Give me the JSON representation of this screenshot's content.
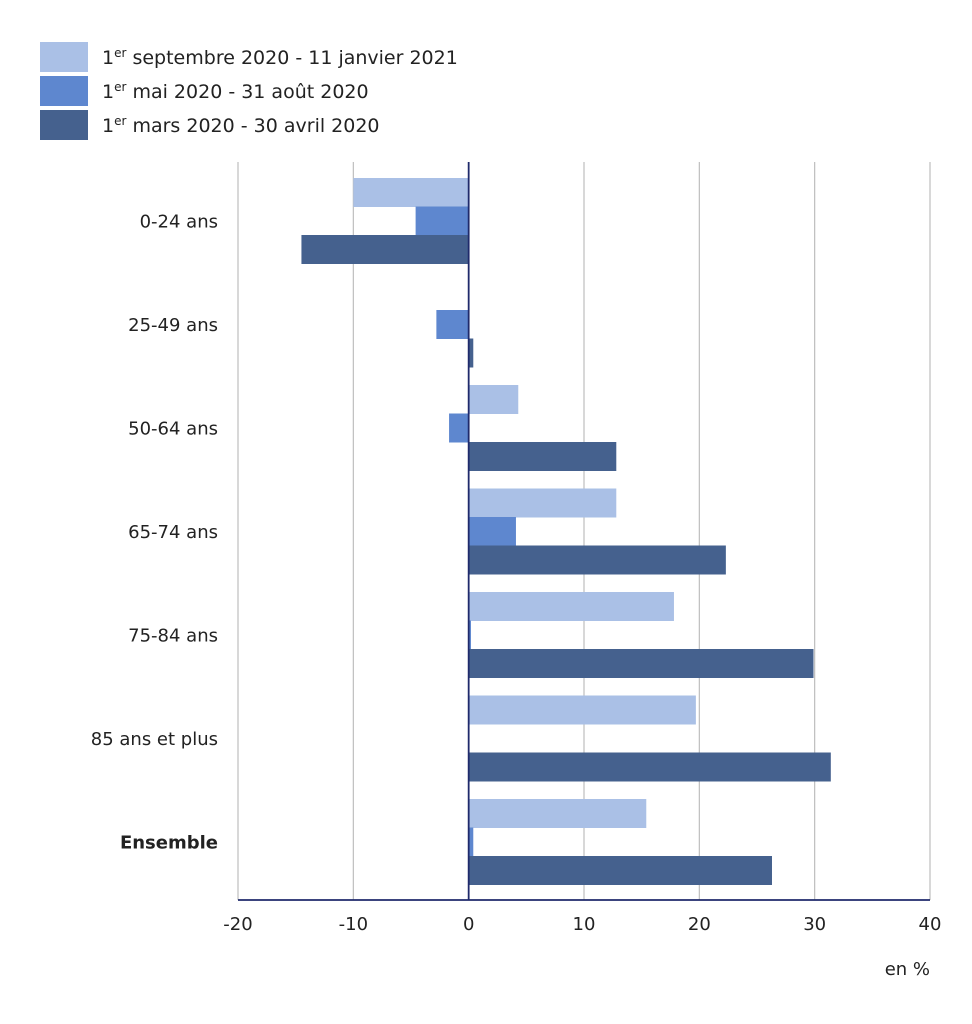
{
  "chart_data": {
    "type": "bar",
    "orientation": "horizontal",
    "categories": [
      "0-24 ans",
      "25-49 ans",
      "50-64 ans",
      "65-74 ans",
      "75-84 ans",
      "85 ans et plus",
      "Ensemble"
    ],
    "series": [
      {
        "name_sup": "er",
        "name_rest": " septembre 2020 - 11 janvier 2021",
        "color": "#aac0e6",
        "values": [
          -10,
          0,
          4.3,
          12.8,
          17.8,
          19.7,
          15.4
        ]
      },
      {
        "name_sup": "er",
        "name_rest": " mai 2020 - 31 août 2020",
        "color": "#5e87cf",
        "values": [
          -4.6,
          -2.8,
          -1.7,
          4.1,
          0.2,
          0,
          0.4
        ]
      },
      {
        "name_sup": "er",
        "name_rest": " mars 2020 - 30 avril 2020",
        "color": "#45618e",
        "values": [
          -14.5,
          0.4,
          12.8,
          22.3,
          29.9,
          31.4,
          26.3
        ]
      }
    ],
    "xlim": [
      -20,
      40
    ],
    "xticks": [
      "-20",
      "-10",
      "0",
      "10",
      "20",
      "30",
      "40"
    ],
    "xlabel": "en %",
    "grid": true,
    "legend": "top-left",
    "bold_category": "Ensemble"
  }
}
